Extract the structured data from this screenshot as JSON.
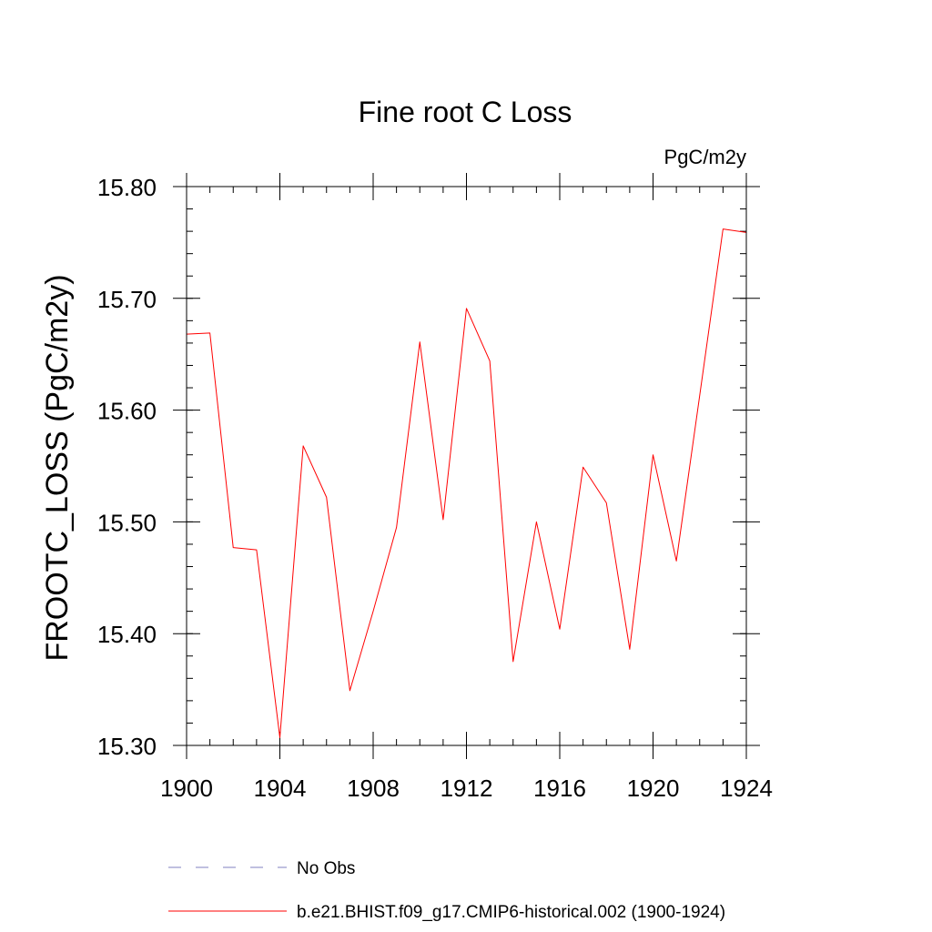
{
  "chart_data": {
    "type": "line",
    "title": "Fine root C Loss",
    "units": "PgC/m2y",
    "ylabel": "FROOTC_LOSS  (PgC/m2y)",
    "xlabel": "",
    "xlim": [
      1900,
      1924
    ],
    "ylim": [
      15.3,
      15.8
    ],
    "xticks": [
      1900,
      1904,
      1908,
      1912,
      1916,
      1920,
      1924
    ],
    "xtick_labels": [
      "1900",
      "1904",
      "1908",
      "1912",
      "1916",
      "1920",
      "1924"
    ],
    "yticks": [
      15.3,
      15.4,
      15.5,
      15.6,
      15.7,
      15.8
    ],
    "ytick_labels": [
      "15.30",
      "15.40",
      "15.50",
      "15.60",
      "15.70",
      "15.80"
    ],
    "grid": false,
    "legend_position": "bottom",
    "x": [
      1900,
      1901,
      1902,
      1903,
      1904,
      1905,
      1906,
      1907,
      1908,
      1909,
      1910,
      1911,
      1912,
      1913,
      1914,
      1915,
      1916,
      1917,
      1918,
      1919,
      1920,
      1921,
      1922,
      1923,
      1924
    ],
    "series": [
      {
        "name": "b.e21.BHIST.f09_g17.CMIP6-historical.002 (1900-1924)",
        "color": "#ff0000",
        "dash": "solid",
        "values": [
          15.668,
          15.669,
          15.477,
          15.475,
          15.307,
          15.568,
          15.522,
          15.349,
          15.42,
          15.495,
          15.661,
          15.502,
          15.691,
          15.644,
          15.375,
          15.5,
          15.404,
          15.549,
          15.517,
          15.386,
          15.56,
          15.465,
          15.613,
          15.762,
          15.759
        ]
      }
    ],
    "legend": [
      {
        "label": "No Obs",
        "color": "#8080c0",
        "dash": "dashed"
      },
      {
        "label": "b.e21.BHIST.f09_g17.CMIP6-historical.002 (1900-1924)",
        "color": "#ff0000",
        "dash": "solid"
      }
    ]
  }
}
